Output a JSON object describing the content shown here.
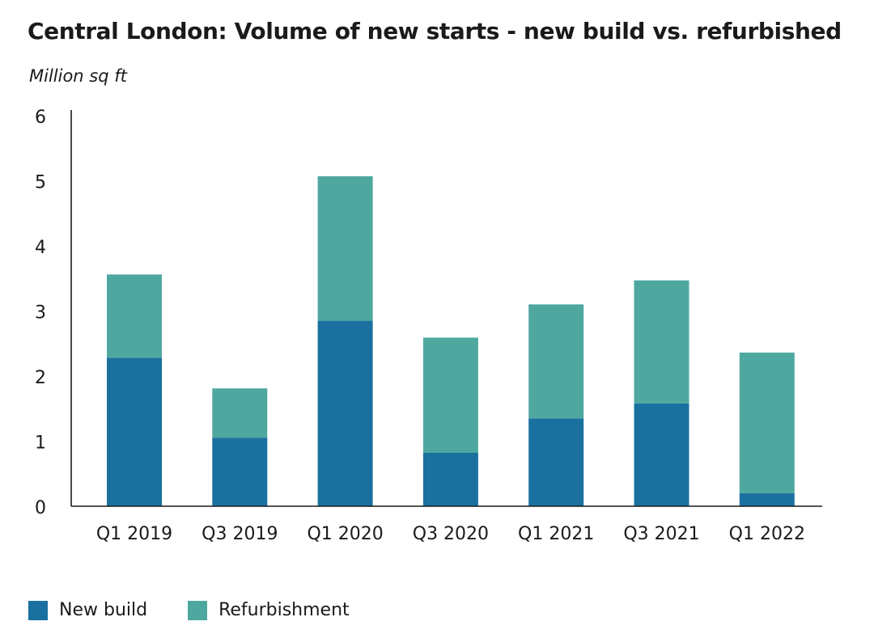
{
  "chart_data": {
    "type": "bar",
    "stacked": true,
    "title": "Central London: Volume of new starts - new build vs. refurbished",
    "ylabel": "Million sq ft",
    "xlabel": "",
    "ylim": [
      0,
      6
    ],
    "yticks": [
      "0",
      "1",
      "2",
      "3",
      "4",
      "5",
      "6"
    ],
    "grid": false,
    "legend_position": "bottom-left",
    "categories": [
      "Q1 2019",
      "Q3 2019",
      "Q1 2020",
      "Q3 2020",
      "Q1 2021",
      "Q3 2021",
      "Q1 2022"
    ],
    "series": [
      {
        "name": "New build",
        "color": "#1a719f",
        "values": [
          2.28,
          1.05,
          2.85,
          0.82,
          1.35,
          1.58,
          0.2
        ]
      },
      {
        "name": "Refurbishment",
        "color": "#4fa8a0",
        "values": [
          1.28,
          0.76,
          2.22,
          1.77,
          1.75,
          1.89,
          2.16
        ]
      }
    ]
  }
}
